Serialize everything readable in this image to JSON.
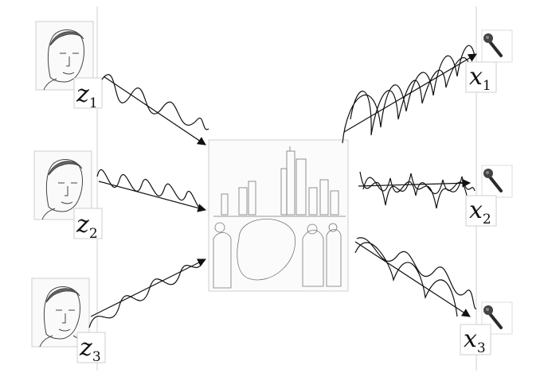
{
  "sources": [
    {
      "symbol": "z",
      "index": "1"
    },
    {
      "symbol": "z",
      "index": "2"
    },
    {
      "symbol": "z",
      "index": "3"
    }
  ],
  "mics": [
    {
      "symbol": "x",
      "index": "1"
    },
    {
      "symbol": "x",
      "index": "2"
    },
    {
      "symbol": "x",
      "index": "3"
    }
  ],
  "colors": {
    "line": "#111111",
    "frame": "#cfcfcf",
    "guide": "#d0d0d0"
  }
}
